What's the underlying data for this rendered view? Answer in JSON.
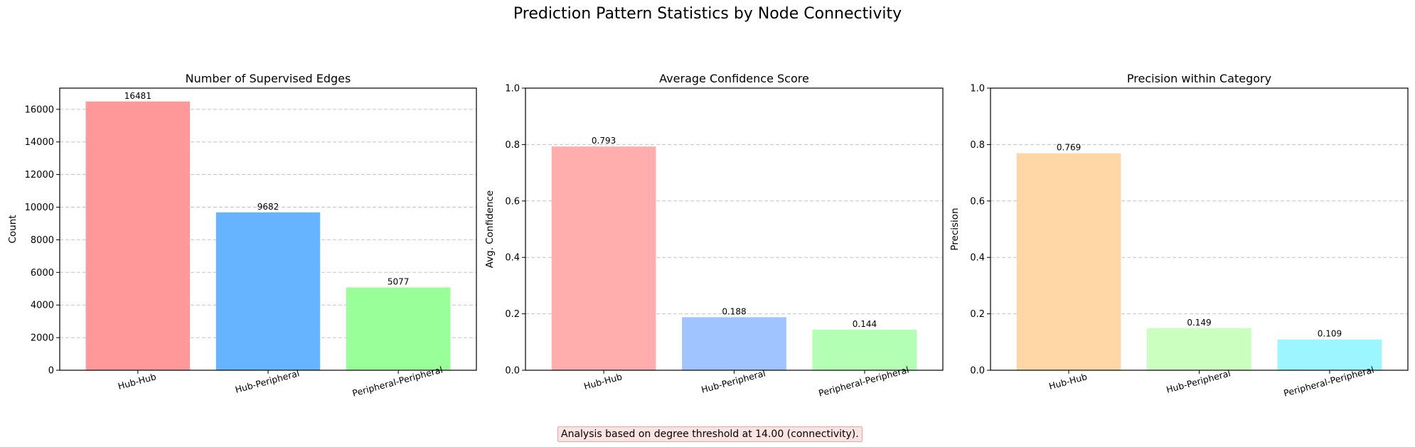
{
  "figure_title": "Prediction Pattern Statistics by Node Connectivity",
  "footnote": "Analysis based on degree threshold at 14.00 (connectivity).",
  "chart_data": [
    {
      "type": "bar",
      "title": "Number of Supervised Edges",
      "xlabel": "",
      "ylabel": "Count",
      "categories": [
        "Hub-Hub",
        "Hub-Peripheral",
        "Peripheral-Peripheral"
      ],
      "values": [
        16481,
        9682,
        5077
      ],
      "value_labels": [
        "16481",
        "9682",
        "5077"
      ],
      "colors": [
        "#ff9999",
        "#66b3ff",
        "#99ff99"
      ],
      "ylim": [
        0,
        17300
      ],
      "yticks": [
        0,
        2000,
        4000,
        6000,
        8000,
        10000,
        12000,
        14000,
        16000
      ],
      "ytick_labels": [
        "0",
        "2000",
        "4000",
        "6000",
        "8000",
        "10000",
        "12000",
        "14000",
        "16000"
      ],
      "grid": "y-dashed"
    },
    {
      "type": "bar",
      "title": "Average Confidence Score",
      "xlabel": "",
      "ylabel": "Avg. Confidence",
      "categories": [
        "Hub-Hub",
        "Hub-Peripheral",
        "Peripheral-Peripheral"
      ],
      "values": [
        0.793,
        0.188,
        0.144
      ],
      "value_labels": [
        "0.793",
        "0.188",
        "0.144"
      ],
      "colors": [
        "#ffadad",
        "#a0c4ff",
        "#b3ffb3"
      ],
      "ylim": [
        0,
        1.0
      ],
      "yticks": [
        0,
        0.2,
        0.4,
        0.6,
        0.8,
        1.0
      ],
      "ytick_labels": [
        "0.0",
        "0.2",
        "0.4",
        "0.6",
        "0.8",
        "1.0"
      ],
      "grid": "y-dashed"
    },
    {
      "type": "bar",
      "title": "Precision within Category",
      "xlabel": "",
      "ylabel": "Precision",
      "categories": [
        "Hub-Hub",
        "Hub-Peripheral",
        "Peripheral-Peripheral"
      ],
      "values": [
        0.769,
        0.149,
        0.109
      ],
      "value_labels": [
        "0.769",
        "0.149",
        "0.109"
      ],
      "colors": [
        "#ffd6a5",
        "#caffbf",
        "#9bf6ff"
      ],
      "ylim": [
        0,
        1.0
      ],
      "yticks": [
        0,
        0.2,
        0.4,
        0.6,
        0.8,
        1.0
      ],
      "ytick_labels": [
        "0.0",
        "0.2",
        "0.4",
        "0.6",
        "0.8",
        "1.0"
      ],
      "grid": "y-dashed"
    }
  ]
}
